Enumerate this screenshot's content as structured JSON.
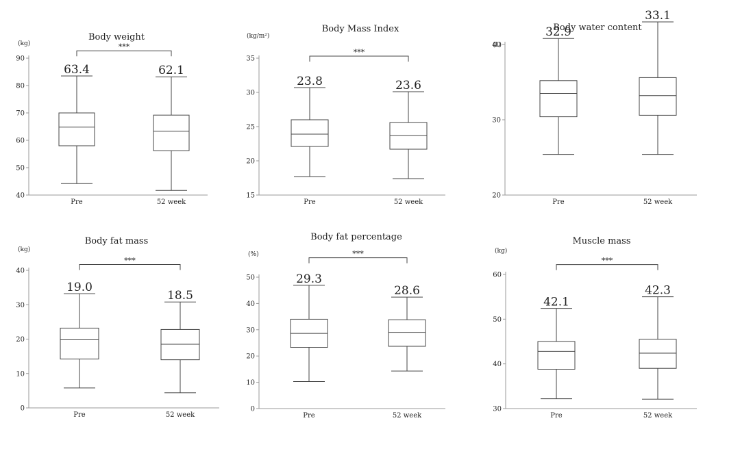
{
  "chart_data": [
    {
      "type": "boxplot",
      "title": "Body weight",
      "unit": "(kg)",
      "ylim": [
        40,
        90
      ],
      "yticks": [
        40,
        50,
        60,
        70,
        80,
        90
      ],
      "categories": [
        "Pre",
        "52 week"
      ],
      "boxes": [
        {
          "min": 44.2,
          "q1": 58.0,
          "median": 64.8,
          "q3": 70.0,
          "max": 83.5,
          "mean": 63.4,
          "mean_label": "63.4"
        },
        {
          "min": 41.7,
          "q1": 56.2,
          "median": 63.3,
          "q3": 69.2,
          "max": 83.2,
          "mean": 62.1,
          "mean_label": "62.1"
        }
      ],
      "significance": "***",
      "sig_level": 92.7
    },
    {
      "type": "boxplot",
      "title": "Body Mass Index",
      "unit": "(kg/m²)",
      "ylim": [
        15,
        35
      ],
      "yticks": [
        15,
        20,
        25,
        30,
        35
      ],
      "categories": [
        "Pre",
        "52 week"
      ],
      "boxes": [
        {
          "min": 17.7,
          "q1": 22.1,
          "median": 23.9,
          "q3": 26.0,
          "max": 30.7,
          "mean": 23.8,
          "mean_label": "23.8"
        },
        {
          "min": 17.4,
          "q1": 21.7,
          "median": 23.7,
          "q3": 25.6,
          "max": 30.1,
          "mean": 23.6,
          "mean_label": "23.6"
        }
      ],
      "significance": "***",
      "sig_level": 35.3
    },
    {
      "type": "boxplot",
      "title": "Body water content",
      "unit": "(L)",
      "ylim": [
        20,
        40
      ],
      "yticks": [
        20,
        30,
        40
      ],
      "categories": [
        "Pre",
        "52 week"
      ],
      "boxes": [
        {
          "min": 25.4,
          "q1": 30.4,
          "median": 33.5,
          "q3": 35.2,
          "max": 40.8,
          "mean": 32.9,
          "mean_label": "32.9"
        },
        {
          "min": 25.4,
          "q1": 30.6,
          "median": 33.2,
          "q3": 35.6,
          "max": 43.0,
          "mean": 33.1,
          "mean_label": "33.1"
        }
      ],
      "significance": "***",
      "sig_level": 49.8
    },
    {
      "type": "boxplot",
      "title": "Body fat mass",
      "unit": "(kg)",
      "ylim": [
        0,
        40
      ],
      "yticks": [
        0,
        10,
        20,
        30,
        40
      ],
      "categories": [
        "Pre",
        "52 week"
      ],
      "boxes": [
        {
          "min": 5.8,
          "q1": 14.2,
          "median": 19.8,
          "q3": 23.2,
          "max": 33.2,
          "mean": 19.0,
          "mean_label": "19.0"
        },
        {
          "min": 4.4,
          "q1": 14.0,
          "median": 18.5,
          "q3": 22.8,
          "max": 30.8,
          "mean": 18.5,
          "mean_label": "18.5"
        }
      ],
      "significance": "***",
      "sig_level": 41.7
    },
    {
      "type": "boxplot",
      "title": "Body fat percentage",
      "unit": "(%)",
      "ylim": [
        0,
        50
      ],
      "yticks": [
        0,
        10,
        20,
        30,
        40,
        50
      ],
      "categories": [
        "Pre",
        "52 week"
      ],
      "boxes": [
        {
          "min": 10.3,
          "q1": 23.3,
          "median": 28.6,
          "q3": 34.0,
          "max": 46.9,
          "mean": 29.3,
          "mean_label": "29.3"
        },
        {
          "min": 14.3,
          "q1": 23.7,
          "median": 29.0,
          "q3": 33.8,
          "max": 42.4,
          "mean": 28.6,
          "mean_label": "28.6"
        }
      ],
      "significance": "***",
      "sig_level": 57.4
    },
    {
      "type": "boxplot",
      "title": "Muscle mass",
      "unit": "(kg)",
      "ylim": [
        30,
        60
      ],
      "yticks": [
        30,
        40,
        50,
        60
      ],
      "categories": [
        "Pre",
        "52 week"
      ],
      "boxes": [
        {
          "min": 32.2,
          "q1": 38.8,
          "median": 42.8,
          "q3": 45.0,
          "max": 52.4,
          "mean": 42.1,
          "mean_label": "42.1"
        },
        {
          "min": 32.1,
          "q1": 39.0,
          "median": 42.4,
          "q3": 45.5,
          "max": 55.0,
          "mean": 42.3,
          "mean_label": "42.3"
        }
      ],
      "significance": "***",
      "sig_level": 62.2
    }
  ]
}
